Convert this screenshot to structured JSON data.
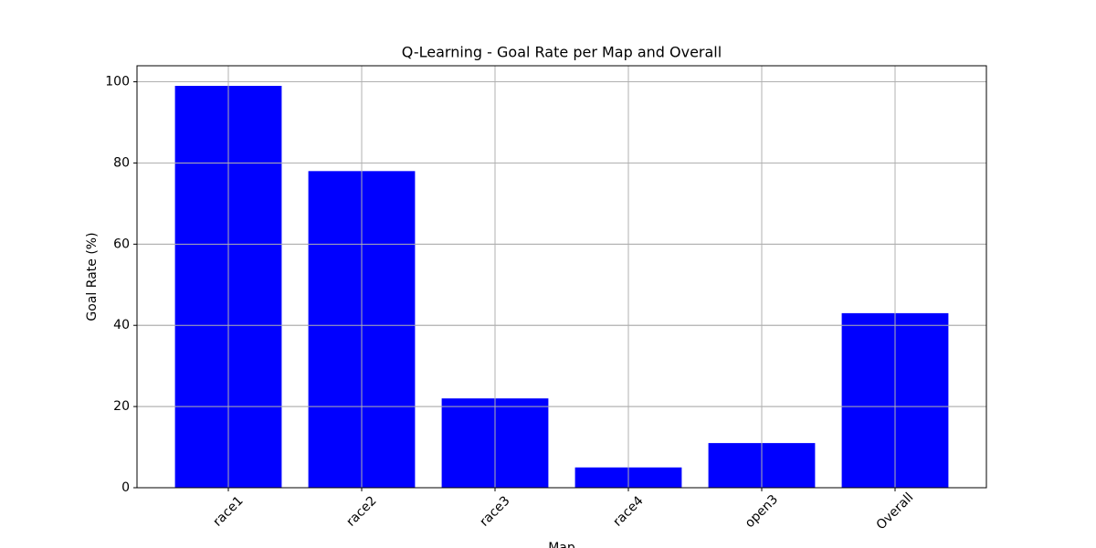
{
  "chart_data": {
    "type": "bar",
    "title": "Q-Learning - Goal Rate per Map and Overall",
    "x_label": "Map",
    "y_label": "Goal Rate (%)",
    "categories": [
      "race1",
      "race2",
      "race3",
      "race4",
      "open3",
      "Overall"
    ],
    "values": [
      99,
      78,
      22,
      5,
      11,
      43
    ],
    "color": "#0000ff",
    "ylim": [
      0,
      103.95
    ],
    "yticks": [
      0,
      20,
      40,
      60,
      80,
      100
    ],
    "grid": true
  }
}
